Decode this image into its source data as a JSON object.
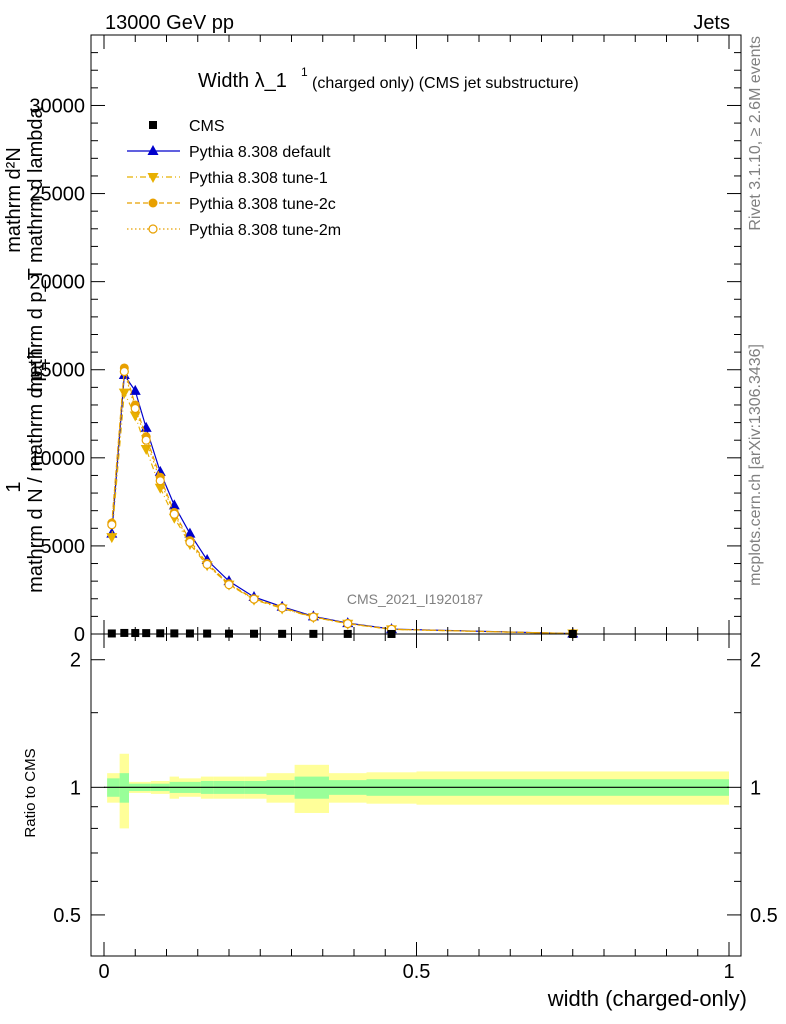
{
  "header": {
    "energy_label": "13000 GeV pp",
    "category_label": "Jets",
    "side_label_top": "Rivet 3.1.10, ≥ 2.6M events",
    "side_label_bottom": "mcplots.cern.ch [arXiv:1306.3436]",
    "watermark": "CMS_2021_I1920187"
  },
  "chart_data": [
    {
      "type": "scatter",
      "title_main": "Width λ_1",
      "title_sup": "1",
      "title_rest": "(charged only) (CMS jet substructure)",
      "ylabel_numerator_top": "mathrm d²N",
      "ylabel_numerator_bottom": "mathrm d p_T mathrm d lambda",
      "ylabel_fraction_one": "1",
      "ylabel_denominator": "mathrm d N / mathrm d p_T",
      "xlim": [
        0,
        1
      ],
      "ylim": [
        0,
        34000
      ],
      "yticks": [
        0,
        5000,
        10000,
        15000,
        20000,
        25000,
        30000
      ],
      "ytick_labels": [
        "0",
        "5000",
        "10000",
        "15000",
        "20000",
        "25000",
        "30000"
      ],
      "grid": false,
      "legend_position": "top-left",
      "x": [
        0.0125,
        0.0325,
        0.05,
        0.0675,
        0.09,
        0.1125,
        0.1375,
        0.165,
        0.2,
        0.24,
        0.285,
        0.335,
        0.39,
        0.46,
        0.75
      ],
      "series": [
        {
          "name": "CMS",
          "color": "#000000",
          "marker": "square",
          "values": [
            30,
            60,
            55,
            50,
            40,
            35,
            30,
            25,
            20,
            15,
            10,
            8,
            5,
            2,
            0.5
          ]
        },
        {
          "name": "Pythia 8.308 default",
          "color": "#0000cc",
          "marker": "triangle-up",
          "line": "solid",
          "values": [
            5700,
            14700,
            13800,
            11700,
            9200,
            7300,
            5700,
            4200,
            3000,
            2100,
            1550,
            1000,
            620,
            280,
            25
          ]
        },
        {
          "name": "Pythia 8.308 tune-1",
          "color": "#e8b000",
          "marker": "triangle-down",
          "line": "dash-dot",
          "values": [
            5500,
            13700,
            12400,
            10500,
            8300,
            6600,
            5100,
            3900,
            2800,
            1950,
            1450,
            950,
            580,
            260,
            25
          ]
        },
        {
          "name": "Pythia 8.308 tune-2c",
          "color": "#e8a000",
          "marker": "circle",
          "line": "dashed",
          "values": [
            6300,
            15100,
            13000,
            11200,
            8900,
            6900,
            5300,
            4000,
            2850,
            2000,
            1500,
            970,
            600,
            270,
            25
          ]
        },
        {
          "name": "Pythia 8.308 tune-2m",
          "color": "#e8a000",
          "marker": "circle-open",
          "line": "dotted",
          "values": [
            6200,
            14900,
            12800,
            11000,
            8700,
            6800,
            5200,
            3950,
            2800,
            1980,
            1480,
            960,
            590,
            265,
            25
          ]
        }
      ]
    },
    {
      "type": "area",
      "ylabel": "Ratio to CMS",
      "xlabel": "width (charged-only)",
      "xlim": [
        0,
        1
      ],
      "ylim": [
        0.4,
        2.3
      ],
      "log_y": true,
      "xticks": [
        0,
        0.5,
        1
      ],
      "xtick_labels": [
        "0",
        "0.5",
        "1"
      ],
      "yticks": [
        0.5,
        1,
        2
      ],
      "ytick_labels": [
        "0.5",
        "1",
        "2"
      ],
      "bins": [
        {
          "x0": 0.005,
          "x1": 0.025,
          "inner": 0.05,
          "outer": 0.08
        },
        {
          "x0": 0.025,
          "x1": 0.04,
          "inner": 0.08,
          "outer": 0.2
        },
        {
          "x0": 0.04,
          "x1": 0.06,
          "inner": 0.02,
          "outer": 0.03
        },
        {
          "x0": 0.06,
          "x1": 0.075,
          "inner": 0.02,
          "outer": 0.03
        },
        {
          "x0": 0.075,
          "x1": 0.105,
          "inner": 0.02,
          "outer": 0.035
        },
        {
          "x0": 0.105,
          "x1": 0.12,
          "inner": 0.03,
          "outer": 0.06
        },
        {
          "x0": 0.12,
          "x1": 0.155,
          "inner": 0.03,
          "outer": 0.05
        },
        {
          "x0": 0.155,
          "x1": 0.175,
          "inner": 0.035,
          "outer": 0.06
        },
        {
          "x0": 0.175,
          "x1": 0.225,
          "inner": 0.035,
          "outer": 0.06
        },
        {
          "x0": 0.225,
          "x1": 0.26,
          "inner": 0.035,
          "outer": 0.06
        },
        {
          "x0": 0.26,
          "x1": 0.305,
          "inner": 0.04,
          "outer": 0.08
        },
        {
          "x0": 0.305,
          "x1": 0.36,
          "inner": 0.06,
          "outer": 0.13
        },
        {
          "x0": 0.36,
          "x1": 0.42,
          "inner": 0.04,
          "outer": 0.08
        },
        {
          "x0": 0.42,
          "x1": 0.5,
          "inner": 0.045,
          "outer": 0.085
        },
        {
          "x0": 0.5,
          "x1": 1.0,
          "inner": 0.045,
          "outer": 0.09
        }
      ],
      "colors": {
        "inner": "#99ff99",
        "outer": "#ffff99",
        "reference_line": "#000000"
      }
    }
  ]
}
